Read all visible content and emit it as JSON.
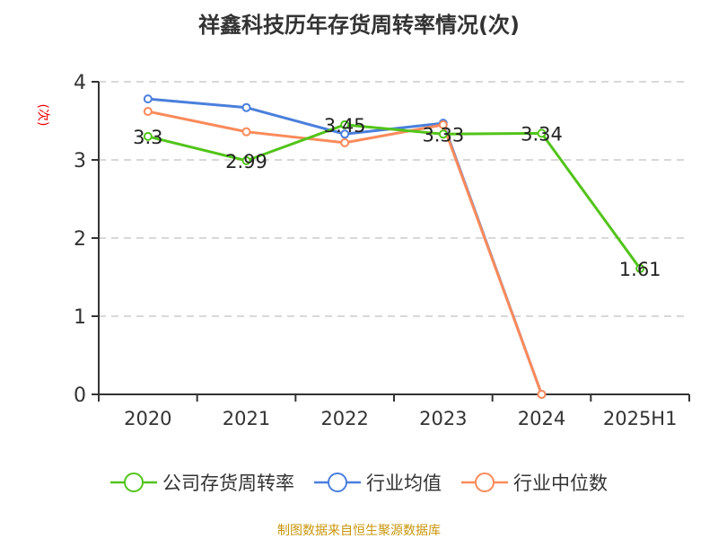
{
  "chart_data": {
    "type": "line",
    "title": "祥鑫科技历年存货周转率情况(次)",
    "ylabel": "(次)",
    "categories": [
      "2020",
      "2021",
      "2022",
      "2023",
      "2024",
      "2025H1"
    ],
    "ylim": [
      0,
      4
    ],
    "yticks": [
      "0",
      "1",
      "2",
      "3",
      "4"
    ],
    "grid": true,
    "legend_placement": "bottom",
    "series": [
      {
        "name": "公司存货周转率",
        "color": "#52c41a",
        "values": [
          3.3,
          2.99,
          3.45,
          3.33,
          3.34,
          1.61
        ],
        "labels": [
          "3.3",
          "2.99",
          "3.45",
          "3.33",
          "3.34",
          "1.61"
        ]
      },
      {
        "name": "行业均值",
        "color": "#4a7fdc",
        "values": [
          3.78,
          3.67,
          3.33,
          3.47,
          0,
          null
        ]
      },
      {
        "name": "行业中位数",
        "color": "#fb8a5a",
        "values": [
          3.62,
          3.36,
          3.22,
          3.45,
          0,
          null
        ]
      }
    ]
  },
  "source": "制图数据来自恒生聚源数据库"
}
